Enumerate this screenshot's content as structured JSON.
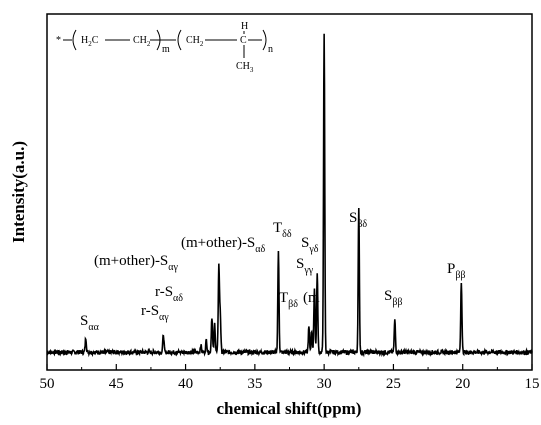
{
  "chart_data": {
    "type": "line",
    "xlabel": "chemical shift(ppm)",
    "ylabel": "Intensity(a.u.)",
    "xlim": [
      50,
      15
    ],
    "x_reversed": true,
    "ylim": [
      0,
      1.0
    ],
    "y_ticks_shown": false,
    "x_ticks": [
      50,
      45,
      40,
      35,
      30,
      25,
      20,
      15
    ],
    "grid": false,
    "baseline": 0.05,
    "peaks": [
      {
        "x": 47.2,
        "height": 0.04,
        "main": "S",
        "sub": "αα"
      },
      {
        "x": 41.6,
        "height": 0.05
      },
      {
        "x": 38.9,
        "height": 0.02
      },
      {
        "x": 38.5,
        "height": 0.035
      },
      {
        "x": 38.1,
        "height": 0.1,
        "main": "r-S",
        "sub": "αγ"
      },
      {
        "x": 37.9,
        "height": 0.08,
        "main": "r-S",
        "sub": "αδ"
      },
      {
        "x": 37.6,
        "height": 0.24,
        "main": "(m+other)-S",
        "sub": "αγ"
      },
      {
        "x": 37.5,
        "height": 0.11,
        "main": "(m+other)-S",
        "sub": "αδ"
      },
      {
        "x": 33.3,
        "height": 0.28,
        "main": "T",
        "sub": "δδ"
      },
      {
        "x": 31.1,
        "height": 0.07,
        "main": "T",
        "sub": "βδ"
      },
      {
        "x": 30.9,
        "height": 0.06,
        "main": "(m"
      },
      {
        "x": 30.7,
        "height": 0.18,
        "main": "S",
        "sub": "γγ"
      },
      {
        "x": 30.5,
        "height": 0.22,
        "main": "S",
        "sub": "γδ"
      },
      {
        "x": 30.0,
        "height": 0.89,
        "main": "S",
        "sub": "δδ"
      },
      {
        "x": 27.5,
        "height": 0.4,
        "main": "S",
        "sub": "βδ"
      },
      {
        "x": 24.9,
        "height": 0.09,
        "main": "S",
        "sub": "ββ"
      },
      {
        "x": 20.1,
        "height": 0.2,
        "main": "P",
        "sub": "ββ"
      }
    ]
  },
  "structure": {
    "star": "*",
    "unit1_left": "H",
    "unit1_left_sub": "2",
    "unit1_left_c": "C",
    "unit1_right_c": "CH",
    "unit1_right_sub": "2",
    "unit1_index": "m",
    "unit2_left_c": "CH",
    "unit2_left_sub": "2",
    "unit2_h": "H",
    "unit2_c": "C",
    "unit2_methyl": "CH",
    "unit2_methyl_sub": "3",
    "unit2_index": "n"
  }
}
